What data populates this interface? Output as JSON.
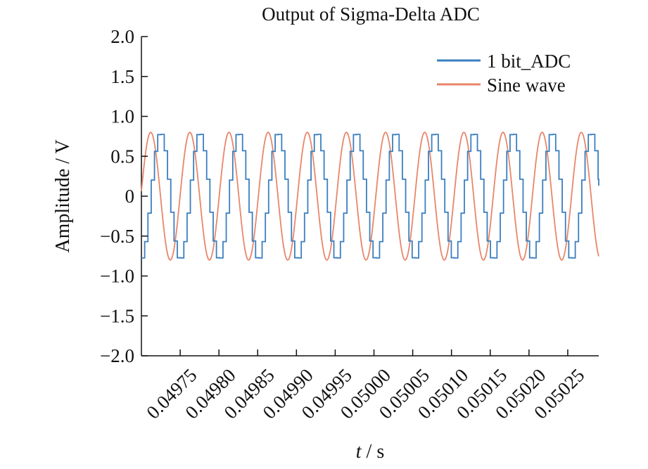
{
  "chart_data": {
    "type": "line",
    "title": "Output of Sigma-Delta ADC",
    "xlabel_italic": "t",
    "xlabel_rest": " / s",
    "ylabel": "Amplitude / V",
    "xlim": [
      0.0497,
      0.05029
    ],
    "ylim": [
      -2.0,
      2.0
    ],
    "yticks": [
      2.0,
      1.5,
      1.0,
      0.5,
      0,
      -0.5,
      -1.0,
      -1.5,
      -2.0
    ],
    "ytick_labels": [
      "2.0",
      "1.5",
      "1.0",
      "0.5",
      "0",
      "−0.5",
      "−1.0",
      "−1.5",
      "−2.0"
    ],
    "xticks": [
      0.04975,
      0.0498,
      0.04985,
      0.0499,
      0.04995,
      0.05,
      0.05005,
      0.0501,
      0.05015,
      0.0502,
      0.05025
    ],
    "xtick_labels": [
      "0.04975",
      "0.04980",
      "0.04985",
      "0.04990",
      "0.04995",
      "0.05000",
      "0.05005",
      "0.05010",
      "0.05015",
      "0.05020",
      "0.05025"
    ],
    "legend_position": "top-right",
    "grid": false,
    "series": [
      {
        "name": "1 bit_ADC",
        "color": "#3a7fc0",
        "style": "staircase",
        "amplitude": 0.8,
        "period": 5.05e-05,
        "phase_lag": 1.12e-05
      },
      {
        "name": "Sine wave",
        "color": "#e8866a",
        "style": "smooth",
        "amplitude": 0.8,
        "period": 5.05e-05,
        "first_peak": 0.049712
      }
    ]
  }
}
